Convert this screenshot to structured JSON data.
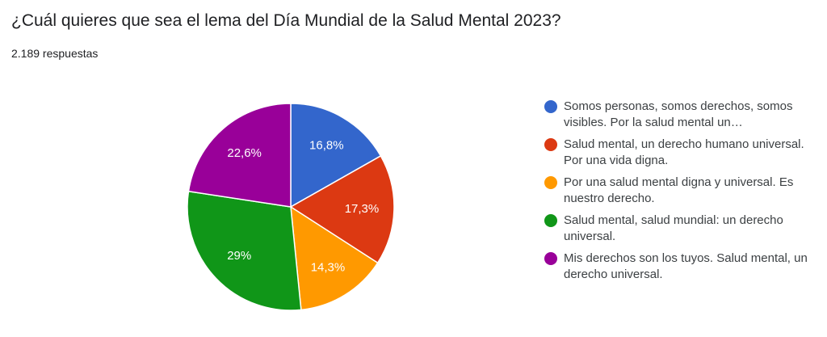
{
  "header": {
    "question": "¿Cuál quieres que sea el lema del Día Mundial de la Salud Mental 2023?",
    "responses": "2.189 respuestas"
  },
  "chart_data": {
    "type": "pie",
    "title": "¿Cuál quieres que sea el lema del Día Mundial de la Salud Mental 2023?",
    "start_angle_deg": 90,
    "direction": "clockwise",
    "legend_position": "right",
    "slices": [
      {
        "name": "Somos personas, somos derechos, somos visibles. Por la salud mental un…",
        "value": 16.8,
        "label": "16,8%",
        "color": "#3366cc"
      },
      {
        "name": "Salud mental, un derecho humano universal. Por una vida digna.",
        "value": 17.3,
        "label": "17,3%",
        "color": "#dc3912"
      },
      {
        "name": "Por una salud mental digna y universal. Es nuestro derecho.",
        "value": 14.3,
        "label": "14,3%",
        "color": "#ff9900"
      },
      {
        "name": "Salud mental, salud mundial: un derecho universal.",
        "value": 29.0,
        "label": "29%",
        "color": "#109618"
      },
      {
        "name": "Mis derechos son los tuyos. Salud mental, un derecho universal.",
        "value": 22.6,
        "label": "22,6%",
        "color": "#990099"
      }
    ]
  }
}
